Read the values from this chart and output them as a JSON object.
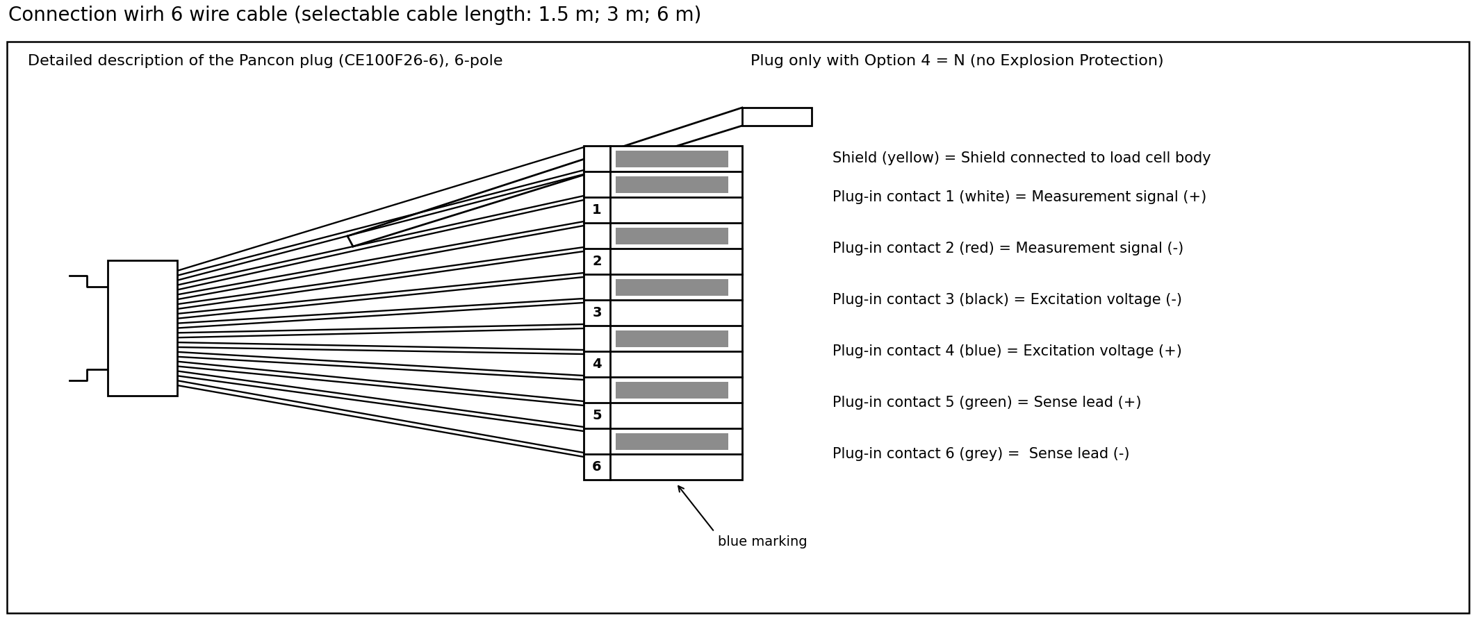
{
  "title": "Connection wirh 6 wire cable (selectable cable length: 1.5 m; 3 m; 6 m)",
  "subtitle_left": "Detailed description of the Pancon plug (CE100F26-6), 6-pole",
  "subtitle_right": "Plug only with Option 4 = N (no Explosion Protection)",
  "labels": [
    "Shield (yellow) = Shield connected to load cell body",
    "Plug-in contact 1 (white) = Measurement signal (+)",
    "Plug-in contact 2 (red) = Measurement signal (-)",
    "Plug-in contact 3 (black) = Excitation voltage (-)",
    "Plug-in contact 4 (blue) = Excitation voltage (+)",
    "Plug-in contact 5 (green) = Sense lead (+)",
    "Plug-in contact 6 (grey) =  Sense lead (-)"
  ],
  "pin_numbers": [
    "1",
    "2",
    "3",
    "4",
    "5",
    "6"
  ],
  "blue_marking_label": "blue marking",
  "bg_color": "#ffffff",
  "line_color": "#000000",
  "grey_color": "#8c8c8c",
  "font_size_title": 20,
  "font_size_subtitle": 16,
  "font_size_label": 15,
  "font_size_pin": 14
}
